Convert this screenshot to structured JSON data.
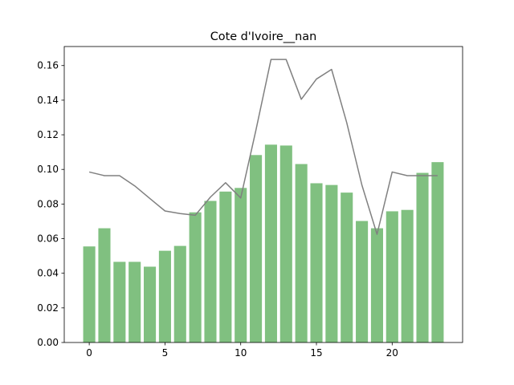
{
  "chart_data": {
    "type": "bar",
    "title": "Cote d'Ivoire__nan",
    "xlabel": "",
    "ylabel": "",
    "xlim": [
      -1.65,
      24.65
    ],
    "ylim": [
      0.0,
      0.171
    ],
    "xticks": [
      0,
      5,
      10,
      15,
      20
    ],
    "yticks": [
      0.0,
      0.02,
      0.04,
      0.06,
      0.08,
      0.1,
      0.12,
      0.14,
      0.16
    ],
    "x": [
      0,
      1,
      2,
      3,
      4,
      5,
      6,
      7,
      8,
      9,
      10,
      11,
      12,
      13,
      14,
      15,
      16,
      17,
      18,
      19,
      20,
      21,
      22,
      23
    ],
    "series": [
      {
        "type": "bar",
        "color": "#80c080",
        "values": [
          0.0555,
          0.066,
          0.0466,
          0.0466,
          0.0438,
          0.053,
          0.0558,
          0.0752,
          0.0818,
          0.0872,
          0.0893,
          0.1083,
          0.1143,
          0.1138,
          0.1031,
          0.092,
          0.091,
          0.0866,
          0.0702,
          0.066,
          0.0758,
          0.0766,
          0.098,
          0.1042
        ]
      },
      {
        "type": "line",
        "color": "#808080",
        "values": [
          0.0985,
          0.0964,
          0.0964,
          0.0905,
          0.0832,
          0.076,
          0.0745,
          0.0735,
          0.084,
          0.0923,
          0.0835,
          0.1225,
          0.1635,
          0.1635,
          0.1405,
          0.1522,
          0.1578,
          0.127,
          0.091,
          0.0625,
          0.0985,
          0.0964,
          0.0964,
          0.0964
        ]
      }
    ]
  }
}
